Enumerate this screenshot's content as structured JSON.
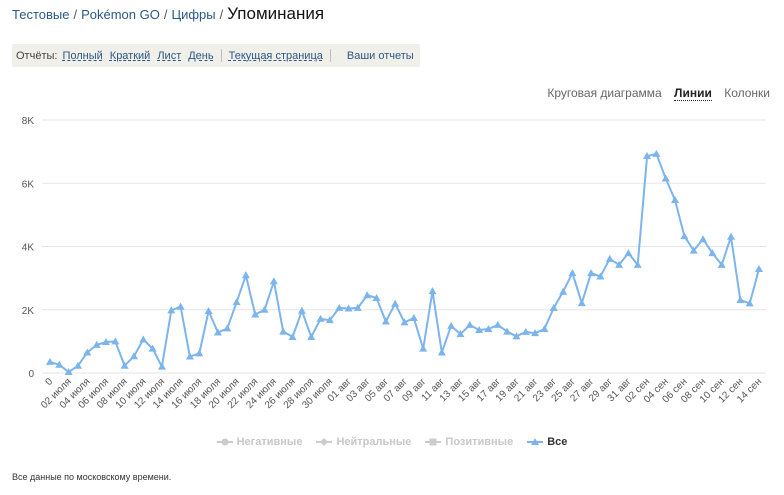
{
  "breadcrumb": {
    "items": [
      "Тестовые",
      "Pokémon GO",
      "Цифры"
    ],
    "current": "Упоминания"
  },
  "reports": {
    "label": "Отчёты:",
    "links": [
      "Полный",
      "Краткий",
      "Лист",
      "День"
    ],
    "current_page": "Текущая страница",
    "yours": "Ваши отчеты"
  },
  "chart_types": {
    "items": [
      "Круговая диаграмма",
      "Линии",
      "Колонки"
    ],
    "active": "Линии"
  },
  "colors": {
    "series": "#7cb5ec",
    "grid": "#e6e6e6",
    "disabled": "#cccccc",
    "link": "#2a5885"
  },
  "chart_data": {
    "type": "line",
    "x_tick_labels": [
      "0",
      "02 июля",
      "04 июля",
      "06 июля",
      "08 июля",
      "10 июля",
      "12 июля",
      "14 июля",
      "16 июля",
      "18 июля",
      "20 июля",
      "22 июля",
      "24 июля",
      "26 июля",
      "28 июля",
      "30 июля",
      "01 авг",
      "03 авг",
      "05 авг",
      "07 авг",
      "09 авг",
      "11 авг",
      "13 авг",
      "15 авг",
      "17 авг",
      "19 авг",
      "21 авг",
      "23 авг",
      "25 авг",
      "27 авг",
      "29 авг",
      "31 авг",
      "02 сен",
      "04 сен",
      "06 сен",
      "08 сен",
      "10 сен",
      "12 сен",
      "14 сен"
    ],
    "y_tick_labels": [
      "0",
      "2K",
      "4K",
      "6K",
      "8K"
    ],
    "ylim": [
      0,
      8000
    ],
    "grid": true,
    "legend_position": "bottom",
    "series": [
      {
        "name": "Негативные",
        "visible": false,
        "marker": "circle",
        "values": []
      },
      {
        "name": "Нейтральные",
        "visible": false,
        "marker": "diamond",
        "values": []
      },
      {
        "name": "Позитивные",
        "visible": false,
        "marker": "square",
        "values": []
      },
      {
        "name": "Все",
        "visible": true,
        "marker": "triangle",
        "values": [
          350,
          260,
          30,
          230,
          650,
          890,
          980,
          1000,
          230,
          530,
          1060,
          770,
          200,
          1980,
          2100,
          520,
          620,
          1960,
          1280,
          1410,
          2240,
          3090,
          1850,
          2000,
          2900,
          1310,
          1140,
          1970,
          1140,
          1710,
          1670,
          2060,
          2040,
          2060,
          2460,
          2370,
          1630,
          2190,
          1600,
          1740,
          770,
          2590,
          650,
          1490,
          1230,
          1520,
          1360,
          1390,
          1520,
          1310,
          1160,
          1300,
          1260,
          1390,
          2060,
          2570,
          3160,
          2210,
          3160,
          3050,
          3610,
          3420,
          3790,
          3420,
          6860,
          6930,
          6150,
          5470,
          4330,
          3870,
          4230,
          3790,
          3420,
          4310,
          2310,
          2200,
          3290
        ]
      }
    ]
  },
  "footer": "Все данные по московскому времени."
}
